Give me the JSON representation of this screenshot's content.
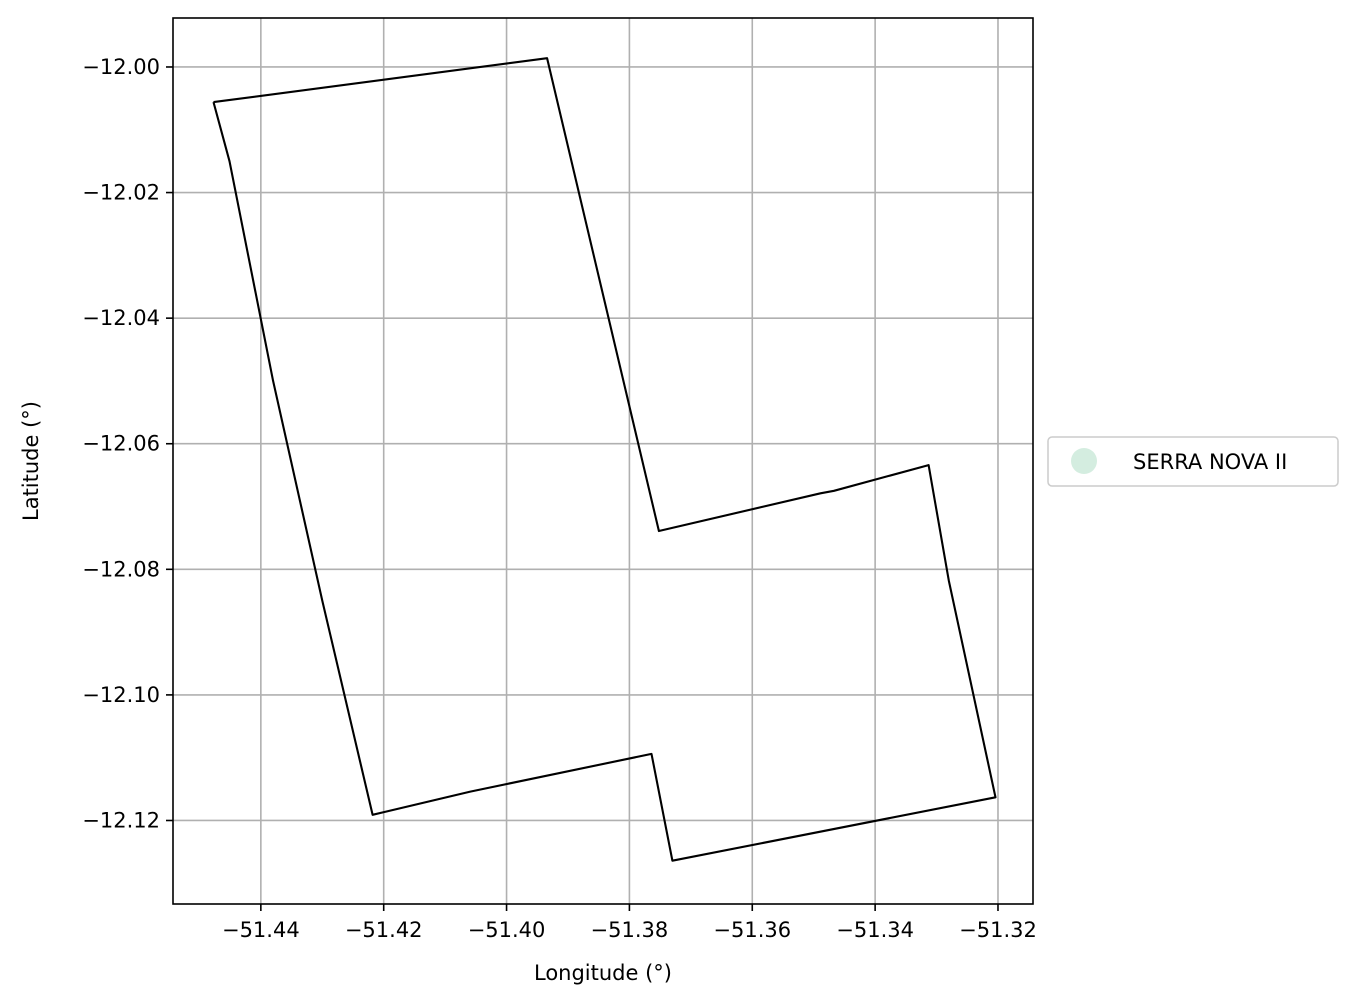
{
  "chart_data": {
    "type": "map",
    "xlabel": "Longitude (°)",
    "ylabel": "Latitude (°)",
    "xlim": [
      -51.4543,
      -51.3143
    ],
    "ylim": [
      -12.1333,
      -11.9922
    ],
    "x_ticks": [
      -51.44,
      -51.42,
      -51.4,
      -51.38,
      -51.36,
      -51.34,
      -51.32
    ],
    "x_tick_labels": [
      "−51.44",
      "−51.42",
      "−51.40",
      "−51.38",
      "−51.36",
      "−51.34",
      "−51.32"
    ],
    "y_ticks": [
      -12.0,
      -12.02,
      -12.04,
      -12.06,
      -12.08,
      -12.1,
      -12.12
    ],
    "y_tick_labels": [
      "−12.00",
      "−12.02",
      "−12.04",
      "−12.06",
      "−12.08",
      "−12.10",
      "−12.12"
    ],
    "grid": true,
    "legend_position": "right",
    "series": [
      {
        "name": "SERRA NOVA II",
        "legend_color": "#d4ede0",
        "edge_color": "#000000",
        "polygon": [
          [
            -51.4477,
            -12.0056
          ],
          [
            -51.3934,
            -11.9986
          ],
          [
            -51.3752,
            -12.0739
          ],
          [
            -51.3489,
            -12.0679
          ],
          [
            -51.3467,
            -12.0675
          ],
          [
            -51.3313,
            -12.0634
          ],
          [
            -51.328,
            -12.0818
          ],
          [
            -51.3204,
            -12.1163
          ],
          [
            -51.373,
            -12.1264
          ],
          [
            -51.3764,
            -12.1094
          ],
          [
            -51.4059,
            -12.1154
          ],
          [
            -51.4218,
            -12.1191
          ],
          [
            -51.43,
            -12.085
          ],
          [
            -51.438,
            -12.05
          ],
          [
            -51.4451,
            -12.015
          ],
          [
            -51.4477,
            -12.0056
          ]
        ]
      }
    ]
  }
}
